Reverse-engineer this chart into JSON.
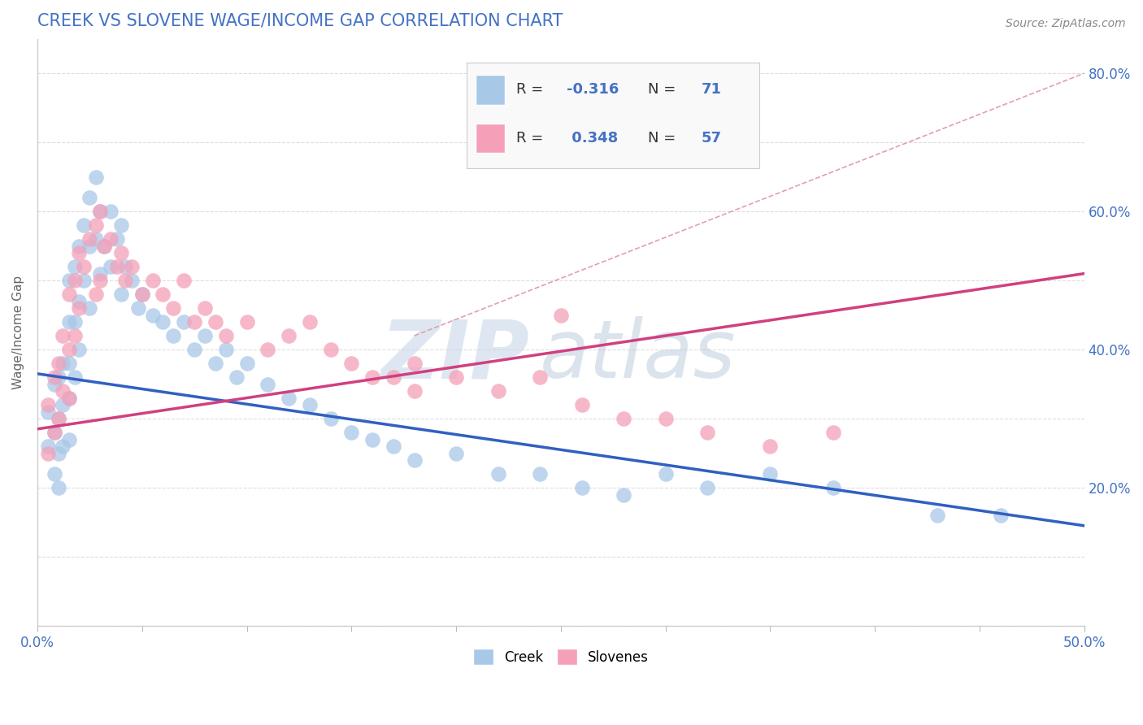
{
  "title": "CREEK VS SLOVENE WAGE/INCOME GAP CORRELATION CHART",
  "source_text": "Source: ZipAtlas.com",
  "ylabel": "Wage/Income Gap",
  "watermark_zip": "ZIP",
  "watermark_atlas": "atlas",
  "xlim": [
    0.0,
    0.5
  ],
  "ylim": [
    0.0,
    0.85
  ],
  "creek_color": "#a8c8e8",
  "slovene_color": "#f4a0b8",
  "trend_creek_color": "#3060c0",
  "trend_slovene_color": "#d04080",
  "ref_line_color": "#e0a0b0",
  "title_color": "#4472c4",
  "axis_label_color": "#4472c4",
  "creek_R": -0.316,
  "creek_N": 71,
  "slovene_R": 0.348,
  "slovene_N": 57,
  "creek_trend_x0": 0.0,
  "creek_trend_y0": 0.365,
  "creek_trend_x1": 0.5,
  "creek_trend_y1": 0.145,
  "slovene_trend_x0": 0.0,
  "slovene_trend_y0": 0.285,
  "slovene_trend_x1": 0.5,
  "slovene_trend_y1": 0.51,
  "ref_line_x0": 0.18,
  "ref_line_y0": 0.42,
  "ref_line_x1": 0.5,
  "ref_line_y1": 0.8,
  "creek_scatter_x": [
    0.005,
    0.005,
    0.008,
    0.008,
    0.008,
    0.01,
    0.01,
    0.01,
    0.01,
    0.012,
    0.012,
    0.012,
    0.015,
    0.015,
    0.015,
    0.015,
    0.015,
    0.018,
    0.018,
    0.018,
    0.02,
    0.02,
    0.02,
    0.022,
    0.022,
    0.025,
    0.025,
    0.025,
    0.028,
    0.028,
    0.03,
    0.03,
    0.032,
    0.035,
    0.035,
    0.038,
    0.04,
    0.04,
    0.042,
    0.045,
    0.048,
    0.05,
    0.055,
    0.06,
    0.065,
    0.07,
    0.075,
    0.08,
    0.085,
    0.09,
    0.095,
    0.1,
    0.11,
    0.12,
    0.13,
    0.14,
    0.15,
    0.16,
    0.17,
    0.18,
    0.2,
    0.22,
    0.24,
    0.26,
    0.28,
    0.3,
    0.32,
    0.35,
    0.38,
    0.43,
    0.46
  ],
  "creek_scatter_y": [
    0.31,
    0.26,
    0.35,
    0.28,
    0.22,
    0.36,
    0.3,
    0.25,
    0.2,
    0.38,
    0.32,
    0.26,
    0.5,
    0.44,
    0.38,
    0.33,
    0.27,
    0.52,
    0.44,
    0.36,
    0.55,
    0.47,
    0.4,
    0.58,
    0.5,
    0.62,
    0.55,
    0.46,
    0.65,
    0.56,
    0.6,
    0.51,
    0.55,
    0.6,
    0.52,
    0.56,
    0.58,
    0.48,
    0.52,
    0.5,
    0.46,
    0.48,
    0.45,
    0.44,
    0.42,
    0.44,
    0.4,
    0.42,
    0.38,
    0.4,
    0.36,
    0.38,
    0.35,
    0.33,
    0.32,
    0.3,
    0.28,
    0.27,
    0.26,
    0.24,
    0.25,
    0.22,
    0.22,
    0.2,
    0.19,
    0.22,
    0.2,
    0.22,
    0.2,
    0.16,
    0.16
  ],
  "slovene_scatter_x": [
    0.005,
    0.005,
    0.008,
    0.008,
    0.01,
    0.01,
    0.012,
    0.012,
    0.015,
    0.015,
    0.015,
    0.018,
    0.018,
    0.02,
    0.02,
    0.022,
    0.025,
    0.028,
    0.028,
    0.03,
    0.03,
    0.032,
    0.035,
    0.038,
    0.04,
    0.042,
    0.045,
    0.05,
    0.055,
    0.06,
    0.065,
    0.07,
    0.075,
    0.08,
    0.085,
    0.09,
    0.1,
    0.11,
    0.12,
    0.13,
    0.14,
    0.15,
    0.16,
    0.17,
    0.18,
    0.2,
    0.22,
    0.24,
    0.26,
    0.28,
    0.3,
    0.32,
    0.35,
    0.38,
    0.25,
    0.18,
    0.25
  ],
  "slovene_scatter_y": [
    0.32,
    0.25,
    0.36,
    0.28,
    0.38,
    0.3,
    0.42,
    0.34,
    0.48,
    0.4,
    0.33,
    0.5,
    0.42,
    0.54,
    0.46,
    0.52,
    0.56,
    0.58,
    0.48,
    0.6,
    0.5,
    0.55,
    0.56,
    0.52,
    0.54,
    0.5,
    0.52,
    0.48,
    0.5,
    0.48,
    0.46,
    0.5,
    0.44,
    0.46,
    0.44,
    0.42,
    0.44,
    0.4,
    0.42,
    0.44,
    0.4,
    0.38,
    0.36,
    0.36,
    0.38,
    0.36,
    0.34,
    0.36,
    0.32,
    0.3,
    0.3,
    0.28,
    0.26,
    0.28,
    0.73,
    0.34,
    0.45
  ],
  "background_color": "#ffffff",
  "grid_color": "#dddddd"
}
